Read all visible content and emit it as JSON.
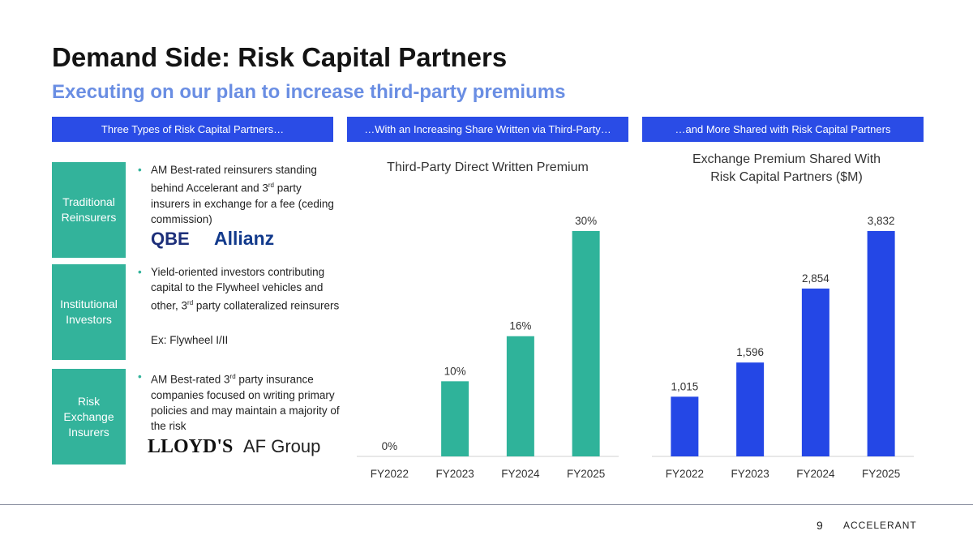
{
  "header": {
    "title": "Demand Side: Risk Capital Partners",
    "subtitle": "Executing on our plan to increase third-party premiums"
  },
  "section_headers": [
    "Three Types of Risk Capital Partners…",
    "…With an Increasing Share Written via Third-Party…",
    "…and More Shared with Risk Capital Partners"
  ],
  "partners": [
    {
      "label": "Traditional Reinsurers",
      "text": {
        "before": "AM Best-rated reinsurers standing behind Accelerant and 3",
        "sup": "rd",
        "after": " party insurers in exchange for a fee (ceding commission)"
      },
      "logos": [
        "QBE",
        "Allianz"
      ]
    },
    {
      "label": "Institutional Investors",
      "text": {
        "before": "Yield-oriented investors contributing capital to the Flywheel vehicles and other, 3",
        "sup": "rd",
        "after": " party collateralized reinsurers"
      },
      "note": "Ex: Flywheel I/II"
    },
    {
      "label": "Risk Exchange Insurers",
      "text": {
        "before": "AM Best-rated 3",
        "sup": "rd",
        "after": " party insurance companies focused on writing primary policies and may maintain a majority of the risk"
      },
      "logos": [
        "LLOYD'S",
        "AF Group"
      ]
    }
  ],
  "chart_data": [
    {
      "type": "bar",
      "title": "Third-Party Direct Written Premium",
      "categories": [
        "FY2022",
        "FY2023",
        "FY2024",
        "FY2025"
      ],
      "values": [
        0,
        10,
        16,
        30
      ],
      "value_labels": [
        "0%",
        "10%",
        "16%",
        "30%"
      ],
      "color": "#2fb39a"
    },
    {
      "type": "bar",
      "title": "Exchange Premium Shared With Risk Capital Partners ($M)",
      "categories": [
        "FY2022",
        "FY2023",
        "FY2024",
        "FY2025"
      ],
      "values": [
        1015,
        1596,
        2854,
        3832
      ],
      "value_labels": [
        "1,015",
        "1,596",
        "2,854",
        "3,832"
      ],
      "color": "#2447e6"
    }
  ],
  "footer": {
    "page": "9",
    "brand": "ACCELERANT"
  }
}
